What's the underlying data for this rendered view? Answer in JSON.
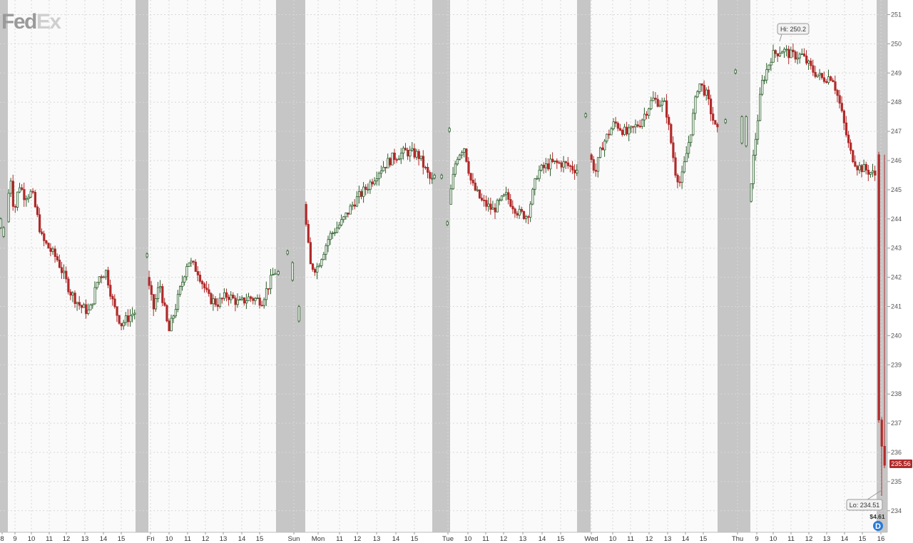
{
  "logo": {
    "part1": "Fed",
    "part2": "Ex"
  },
  "colors": {
    "up": "#2a5e2a",
    "down": "#b02a2a",
    "band": "#c6c6c6",
    "grid": "#d8d8d8",
    "background": "#fafafa"
  },
  "chart_data": {
    "type": "candlestick",
    "ylim": [
      233.6,
      251.4
    ],
    "y_ticks": [
      234,
      235,
      236,
      237,
      238,
      239,
      240,
      241,
      242,
      243,
      244,
      245,
      246,
      247,
      248,
      249,
      250,
      251
    ],
    "x_ticks": [
      "8",
      "9",
      "10",
      "11",
      "12",
      "13",
      "14",
      "15",
      "Fri",
      "10",
      "11",
      "12",
      "13",
      "14",
      "15",
      "Sun",
      "Mon",
      "11",
      "12",
      "13",
      "14",
      "15",
      "Tue",
      "10",
      "11",
      "12",
      "13",
      "14",
      "15",
      "Wed",
      "10",
      "11",
      "12",
      "13",
      "14",
      "15",
      "Thu",
      "9",
      "10",
      "11",
      "12",
      "13",
      "14",
      "15",
      "16"
    ],
    "sessions": [
      {
        "name": "Thu",
        "path": [
          [
            0,
            243.9
          ],
          [
            0.03,
            245.6
          ],
          [
            0.06,
            244.2
          ],
          [
            0.1,
            245.2
          ],
          [
            0.14,
            244.8
          ],
          [
            0.2,
            244.9
          ],
          [
            0.28,
            243.3
          ],
          [
            0.4,
            242.6
          ],
          [
            0.5,
            241.5
          ],
          [
            0.58,
            241
          ],
          [
            0.65,
            240.8
          ],
          [
            0.72,
            242
          ],
          [
            0.78,
            242.2
          ],
          [
            0.84,
            241
          ],
          [
            0.9,
            240.4
          ],
          [
            1,
            240.8
          ]
        ]
      },
      {
        "name": "Fri",
        "path": [
          [
            0,
            242
          ],
          [
            0.05,
            240.9
          ],
          [
            0.1,
            241.8
          ],
          [
            0.17,
            240.1
          ],
          [
            0.25,
            241.4
          ],
          [
            0.32,
            242.6
          ],
          [
            0.4,
            242.2
          ],
          [
            0.48,
            241.3
          ],
          [
            0.55,
            241.1
          ],
          [
            0.63,
            241.4
          ],
          [
            0.72,
            241.1
          ],
          [
            0.8,
            241.3
          ],
          [
            0.9,
            241.2
          ],
          [
            1,
            242.2
          ]
        ]
      },
      {
        "name": "Mon",
        "path": [
          [
            0,
            244.5
          ],
          [
            0.05,
            242.4
          ],
          [
            0.1,
            242.3
          ],
          [
            0.2,
            243.4
          ],
          [
            0.3,
            243.9
          ],
          [
            0.4,
            244.6
          ],
          [
            0.5,
            245.1
          ],
          [
            0.6,
            245.7
          ],
          [
            0.7,
            246.1
          ],
          [
            0.8,
            246.3
          ],
          [
            0.9,
            246.2
          ],
          [
            1,
            245.3
          ]
        ]
      },
      {
        "name": "Tue",
        "path": [
          [
            0,
            244.5
          ],
          [
            0.06,
            246.1
          ],
          [
            0.12,
            246.5
          ],
          [
            0.18,
            245.2
          ],
          [
            0.26,
            244.6
          ],
          [
            0.35,
            244.3
          ],
          [
            0.45,
            244.8
          ],
          [
            0.55,
            244.2
          ],
          [
            0.62,
            244.1
          ],
          [
            0.7,
            245.6
          ],
          [
            0.8,
            245.9
          ],
          [
            0.9,
            245.9
          ],
          [
            1,
            245.7
          ]
        ]
      },
      {
        "name": "Wed",
        "path": [
          [
            0,
            246.2
          ],
          [
            0.05,
            245.6
          ],
          [
            0.1,
            246.5
          ],
          [
            0.2,
            247.3
          ],
          [
            0.3,
            246.9
          ],
          [
            0.4,
            247.3
          ],
          [
            0.5,
            248.1
          ],
          [
            0.6,
            247.9
          ],
          [
            0.68,
            245.6
          ],
          [
            0.72,
            245.2
          ],
          [
            0.8,
            247.0
          ],
          [
            0.86,
            248.7
          ],
          [
            0.92,
            248.3
          ],
          [
            1,
            247.0
          ]
        ]
      },
      {
        "name": "Thu",
        "path": [
          [
            0,
            244.6
          ],
          [
            0.04,
            246.3
          ],
          [
            0.1,
            248.6
          ],
          [
            0.18,
            249.6
          ],
          [
            0.26,
            249.8
          ],
          [
            0.34,
            249.6
          ],
          [
            0.42,
            249.6
          ],
          [
            0.5,
            249.1
          ],
          [
            0.58,
            248.8
          ],
          [
            0.66,
            248.9
          ],
          [
            0.72,
            247.9
          ],
          [
            0.8,
            246.3
          ],
          [
            0.86,
            245.8
          ],
          [
            0.92,
            245.7
          ],
          [
            1,
            245.5
          ]
        ]
      }
    ],
    "high": 250.2,
    "low": 234.51,
    "last": 235.56,
    "dividend": "$4.61"
  },
  "callouts": {
    "hi": "Hi: 250.2",
    "lo": "Lo: 234.51",
    "last": "235.56",
    "dividend": "$4.61",
    "dividend_icon": "D"
  }
}
